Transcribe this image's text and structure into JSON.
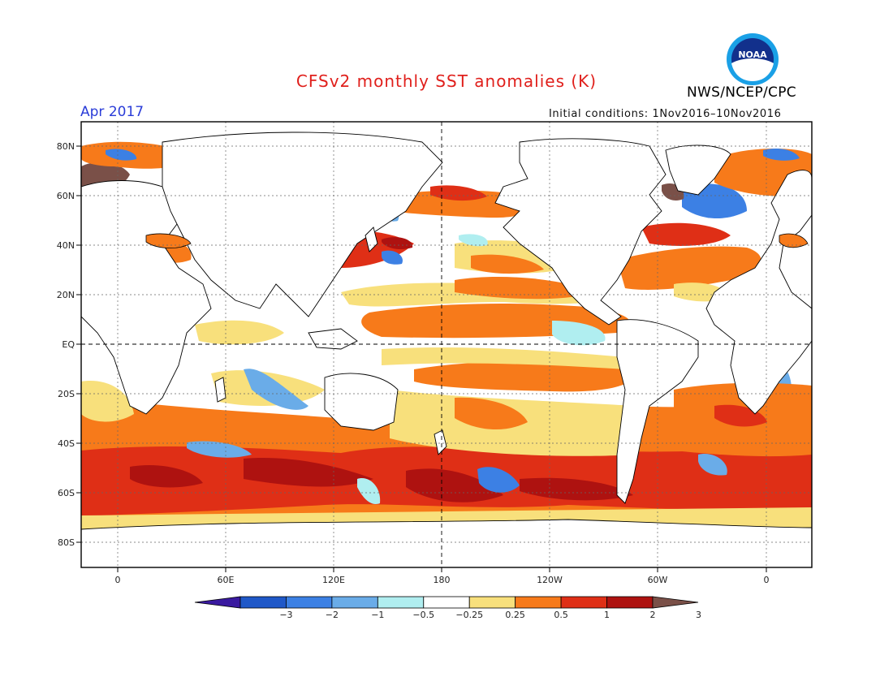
{
  "header": {
    "title": "CFSv2 monthly SST anomalies (K)",
    "date": "Apr 2017",
    "initial_conditions": "Initial conditions: 1Nov2016–10Nov2016",
    "agency": "NWS/NCEP/CPC",
    "logo_text": "NOAA"
  },
  "map": {
    "lat_labels": [
      "80N",
      "60N",
      "40N",
      "20N",
      "EQ",
      "20S",
      "40S",
      "60S",
      "80S"
    ],
    "lon_labels": [
      "0",
      "60E",
      "120E",
      "180",
      "120W",
      "60W",
      "0"
    ]
  },
  "colorbar": {
    "colors": [
      "#3a1aa0",
      "#1f58c8",
      "#3c80e4",
      "#6aace8",
      "#b0eef0",
      "#ffffff",
      "#f8e07c",
      "#f77a1a",
      "#df2f16",
      "#ae1210",
      "#7a5048"
    ],
    "tick_labels": [
      "−3",
      "−2",
      "−1",
      "−0.5",
      "−0.25",
      "0.25",
      "0.5",
      "1",
      "2",
      "3"
    ]
  }
}
